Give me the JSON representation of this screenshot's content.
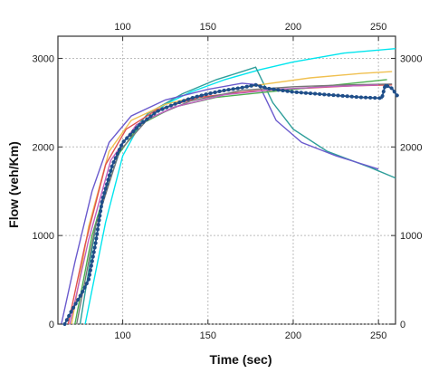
{
  "chart_data": {
    "type": "line",
    "title": "",
    "xlabel": "Time (sec)",
    "ylabel": "Flow (veh/Km)",
    "xlim": [
      62,
      260
    ],
    "ylim": [
      0,
      3250
    ],
    "xticks": [
      100,
      150,
      200,
      250
    ],
    "yticks": [
      0,
      1000,
      2000,
      3000
    ],
    "top_axis_ticks": [
      100,
      150,
      200,
      250
    ],
    "right_axis_ticks": [
      0,
      1000,
      2000,
      3000
    ],
    "grid": true,
    "legend": "none",
    "series": [
      {
        "color": "#00e5ee",
        "style": "line",
        "points": [
          [
            78,
            0
          ],
          [
            90,
            1150
          ],
          [
            100,
            1900
          ],
          [
            110,
            2250
          ],
          [
            125,
            2480
          ],
          [
            140,
            2620
          ],
          [
            160,
            2760
          ],
          [
            180,
            2870
          ],
          [
            200,
            2960
          ],
          [
            230,
            3060
          ],
          [
            260,
            3110
          ]
        ]
      },
      {
        "color": "#2e9e9a",
        "style": "line",
        "points": [
          [
            75,
            0
          ],
          [
            85,
            1200
          ],
          [
            100,
            2050
          ],
          [
            115,
            2380
          ],
          [
            135,
            2600
          ],
          [
            155,
            2760
          ],
          [
            170,
            2850
          ],
          [
            178,
            2900
          ],
          [
            188,
            2500
          ],
          [
            200,
            2200
          ],
          [
            220,
            1950
          ],
          [
            245,
            1770
          ],
          [
            260,
            1650
          ]
        ]
      },
      {
        "color": "#6a5acd",
        "style": "line",
        "points": [
          [
            64,
            0
          ],
          [
            72,
            700
          ],
          [
            82,
            1500
          ],
          [
            92,
            2050
          ],
          [
            105,
            2350
          ],
          [
            125,
            2530
          ],
          [
            150,
            2650
          ],
          [
            170,
            2720
          ],
          [
            180,
            2700
          ],
          [
            190,
            2300
          ],
          [
            205,
            2050
          ],
          [
            225,
            1900
          ],
          [
            250,
            1750
          ]
        ]
      },
      {
        "color": "#f0c050",
        "style": "line",
        "points": [
          [
            70,
            0
          ],
          [
            80,
            1100
          ],
          [
            92,
            1950
          ],
          [
            105,
            2300
          ],
          [
            125,
            2480
          ],
          [
            150,
            2600
          ],
          [
            180,
            2700
          ],
          [
            210,
            2780
          ],
          [
            240,
            2830
          ],
          [
            258,
            2850
          ]
        ]
      },
      {
        "color": "#e05050",
        "style": "line",
        "points": [
          [
            68,
            0
          ],
          [
            78,
            900
          ],
          [
            90,
            1800
          ],
          [
            102,
            2200
          ],
          [
            120,
            2420
          ],
          [
            145,
            2560
          ],
          [
            175,
            2630
          ],
          [
            205,
            2660
          ],
          [
            235,
            2690
          ],
          [
            258,
            2700
          ]
        ]
      },
      {
        "color": "#4caf50",
        "style": "line",
        "points": [
          [
            72,
            0
          ],
          [
            82,
            1000
          ],
          [
            95,
            1850
          ],
          [
            110,
            2250
          ],
          [
            130,
            2450
          ],
          [
            155,
            2560
          ],
          [
            185,
            2620
          ],
          [
            215,
            2680
          ],
          [
            245,
            2740
          ],
          [
            255,
            2760
          ]
        ]
      },
      {
        "color": "#777777",
        "style": "line",
        "points": [
          [
            73,
            0
          ],
          [
            84,
            1100
          ],
          [
            98,
            1950
          ],
          [
            115,
            2320
          ],
          [
            140,
            2520
          ],
          [
            170,
            2640
          ],
          [
            200,
            2680
          ],
          [
            230,
            2700
          ],
          [
            258,
            2710
          ]
        ]
      },
      {
        "color": "#c060c0",
        "style": "line",
        "points": [
          [
            69,
            0
          ],
          [
            80,
            950
          ],
          [
            93,
            1850
          ],
          [
            108,
            2250
          ],
          [
            130,
            2450
          ],
          [
            160,
            2590
          ],
          [
            190,
            2650
          ],
          [
            220,
            2680
          ],
          [
            250,
            2700
          ]
        ]
      },
      {
        "color": "#1f4e89",
        "style": "dotted",
        "points": [
          [
            66,
            0
          ],
          [
            70,
            150
          ],
          [
            76,
            350
          ],
          [
            80,
            500
          ],
          [
            84,
            900
          ],
          [
            88,
            1400
          ],
          [
            94,
            1800
          ],
          [
            100,
            2050
          ],
          [
            110,
            2250
          ],
          [
            120,
            2400
          ],
          [
            130,
            2480
          ],
          [
            140,
            2550
          ],
          [
            150,
            2600
          ],
          [
            160,
            2640
          ],
          [
            170,
            2670
          ],
          [
            178,
            2700
          ],
          [
            185,
            2660
          ],
          [
            200,
            2620
          ],
          [
            220,
            2590
          ],
          [
            240,
            2560
          ],
          [
            252,
            2550
          ],
          [
            254,
            2700
          ],
          [
            258,
            2660
          ],
          [
            261,
            2580
          ]
        ]
      }
    ]
  }
}
